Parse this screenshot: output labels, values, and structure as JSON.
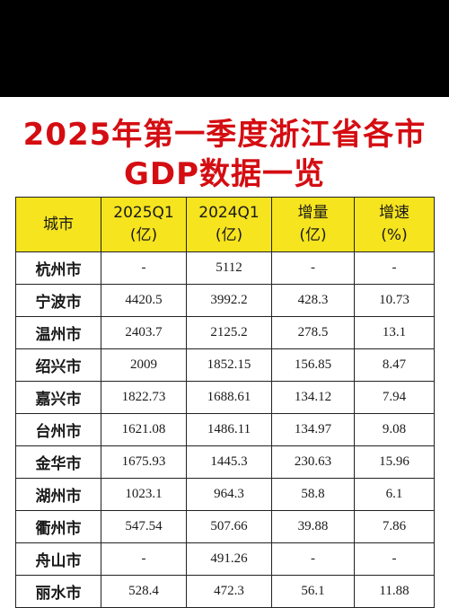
{
  "title": {
    "line1": "2025年第一季度浙江省各市",
    "line2": "GDP数据一览"
  },
  "table": {
    "headers": [
      {
        "main": "城市",
        "sub": ""
      },
      {
        "main": "2025Q1",
        "sub": "(亿)"
      },
      {
        "main": "2024Q1",
        "sub": "(亿)"
      },
      {
        "main": "增量",
        "sub": "(亿)"
      },
      {
        "main": "增速",
        "sub": "(%)"
      }
    ],
    "rows": [
      [
        "杭州市",
        "-",
        "5112",
        "-",
        "-"
      ],
      [
        "宁波市",
        "4420.5",
        "3992.2",
        "428.3",
        "10.73"
      ],
      [
        "温州市",
        "2403.7",
        "2125.2",
        "278.5",
        "13.1"
      ],
      [
        "绍兴市",
        "2009",
        "1852.15",
        "156.85",
        "8.47"
      ],
      [
        "嘉兴市",
        "1822.73",
        "1688.61",
        "134.12",
        "7.94"
      ],
      [
        "台州市",
        "1621.08",
        "1486.11",
        "134.97",
        "9.08"
      ],
      [
        "金华市",
        "1675.93",
        "1445.3",
        "230.63",
        "15.96"
      ],
      [
        "湖州市",
        "1023.1",
        "964.3",
        "58.8",
        "6.1"
      ],
      [
        "衢州市",
        "547.54",
        "507.66",
        "39.88",
        "7.86"
      ],
      [
        "舟山市",
        "-",
        "491.26",
        "-",
        "-"
      ],
      [
        "丽水市",
        "528.4",
        "472.3",
        "56.1",
        "11.88"
      ]
    ]
  },
  "colors": {
    "title": "#d40d12",
    "header_bg": "#f6e41e",
    "top_band": "#000000"
  }
}
